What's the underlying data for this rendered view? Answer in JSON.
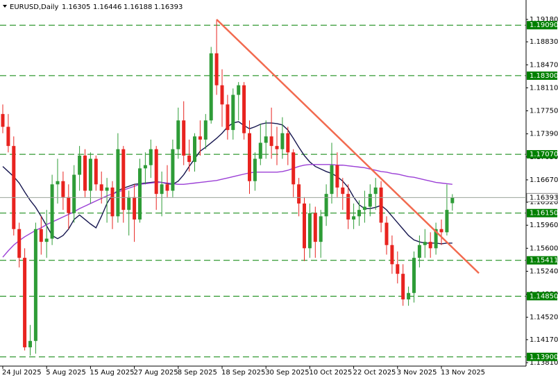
{
  "chart_data": {
    "type": "candlestick",
    "title": "EURUSD,Daily",
    "categories": [
      "2025-07-24",
      "2025-07-25",
      "2025-07-28",
      "2025-07-29",
      "2025-07-30",
      "2025-07-31",
      "2025-08-01",
      "2025-08-04",
      "2025-08-05",
      "2025-08-06",
      "2025-08-07",
      "2025-08-08",
      "2025-08-11",
      "2025-08-12",
      "2025-08-13",
      "2025-08-14",
      "2025-08-15",
      "2025-08-18",
      "2025-08-19",
      "2025-08-20",
      "2025-08-21",
      "2025-08-22",
      "2025-08-25",
      "2025-08-26",
      "2025-08-27",
      "2025-08-28",
      "2025-08-29",
      "2025-09-01",
      "2025-09-02",
      "2025-09-03",
      "2025-09-04",
      "2025-09-05",
      "2025-09-08",
      "2025-09-09",
      "2025-09-10",
      "2025-09-11",
      "2025-09-12",
      "2025-09-15",
      "2025-09-16",
      "2025-09-17",
      "2025-09-18",
      "2025-09-19",
      "2025-09-22",
      "2025-09-23",
      "2025-09-24",
      "2025-09-25",
      "2025-09-26",
      "2025-09-29",
      "2025-09-30",
      "2025-10-01",
      "2025-10-02",
      "2025-10-03",
      "2025-10-06",
      "2025-10-07",
      "2025-10-08",
      "2025-10-09",
      "2025-10-10",
      "2025-10-13",
      "2025-10-14",
      "2025-10-15",
      "2025-10-16",
      "2025-10-17",
      "2025-10-20",
      "2025-10-21",
      "2025-10-22",
      "2025-10-23",
      "2025-10-24",
      "2025-10-27",
      "2025-10-28",
      "2025-10-29",
      "2025-10-30",
      "2025-10-31",
      "2025-11-03",
      "2025-11-04",
      "2025-11-05",
      "2025-11-06",
      "2025-11-07",
      "2025-11-10",
      "2025-11-11",
      "2025-11-12",
      "2025-11-13",
      "2025-11-14",
      "2025-11-17"
    ],
    "candles": {
      "open": [
        1.177,
        1.175,
        1.172,
        1.159,
        1.1545,
        1.1405,
        1.1415,
        1.159,
        1.157,
        1.1575,
        1.166,
        1.1665,
        1.164,
        1.1615,
        1.1675,
        1.1705,
        1.165,
        1.17,
        1.166,
        1.165,
        1.1655,
        1.161,
        1.1715,
        1.162,
        1.164,
        1.1605,
        1.1685,
        1.169,
        1.1715,
        1.1645,
        1.166,
        1.165,
        1.1715,
        1.176,
        1.1705,
        1.1695,
        1.1735,
        1.173,
        1.176,
        1.1865,
        1.1815,
        1.1785,
        1.1745,
        1.18,
        1.1815,
        1.174,
        1.1665,
        1.17,
        1.1725,
        1.1735,
        1.172,
        1.1715,
        1.174,
        1.171,
        1.166,
        1.163,
        1.156,
        1.1615,
        1.157,
        1.161,
        1.1645,
        1.169,
        1.1655,
        1.1645,
        1.1605,
        1.161,
        1.162,
        1.1625,
        1.1645,
        1.1655,
        1.16,
        1.1565,
        1.1535,
        1.152,
        1.148,
        1.149,
        1.1545,
        1.1565,
        1.157,
        1.156,
        1.159,
        1.1585,
        1.16305
      ],
      "high": [
        1.1785,
        1.177,
        1.1735,
        1.16,
        1.156,
        1.144,
        1.16,
        1.161,
        1.162,
        1.1675,
        1.17,
        1.168,
        1.166,
        1.169,
        1.172,
        1.1715,
        1.171,
        1.1705,
        1.168,
        1.167,
        1.1665,
        1.174,
        1.172,
        1.165,
        1.166,
        1.17,
        1.171,
        1.173,
        1.172,
        1.168,
        1.169,
        1.173,
        1.178,
        1.179,
        1.173,
        1.174,
        1.176,
        1.177,
        1.1875,
        1.1918,
        1.184,
        1.18,
        1.181,
        1.182,
        1.182,
        1.176,
        1.171,
        1.1755,
        1.176,
        1.178,
        1.175,
        1.1765,
        1.175,
        1.1715,
        1.167,
        1.164,
        1.163,
        1.1625,
        1.162,
        1.166,
        1.1725,
        1.171,
        1.167,
        1.166,
        1.163,
        1.1635,
        1.165,
        1.166,
        1.167,
        1.1665,
        1.161,
        1.158,
        1.1555,
        1.1535,
        1.15,
        1.1555,
        1.158,
        1.159,
        1.1585,
        1.16,
        1.1605,
        1.166,
        1.16446
      ],
      "low": [
        1.174,
        1.171,
        1.158,
        1.153,
        1.14,
        1.1392,
        1.1395,
        1.155,
        1.1545,
        1.1565,
        1.163,
        1.162,
        1.159,
        1.16,
        1.165,
        1.164,
        1.163,
        1.165,
        1.163,
        1.16,
        1.159,
        1.16,
        1.16,
        1.158,
        1.157,
        1.16,
        1.166,
        1.167,
        1.162,
        1.161,
        1.164,
        1.164,
        1.17,
        1.169,
        1.168,
        1.168,
        1.1705,
        1.1715,
        1.1755,
        1.18,
        1.175,
        1.173,
        1.173,
        1.176,
        1.173,
        1.1645,
        1.165,
        1.169,
        1.17,
        1.17,
        1.169,
        1.17,
        1.169,
        1.164,
        1.161,
        1.154,
        1.1545,
        1.1545,
        1.1545,
        1.1595,
        1.163,
        1.164,
        1.162,
        1.159,
        1.159,
        1.1595,
        1.16,
        1.161,
        1.162,
        1.1585,
        1.155,
        1.152,
        1.1505,
        1.147,
        1.147,
        1.1475,
        1.153,
        1.1545,
        1.1545,
        1.155,
        1.1565,
        1.158,
        1.16188
      ],
      "close": [
        1.175,
        1.172,
        1.159,
        1.1545,
        1.1405,
        1.1415,
        1.159,
        1.157,
        1.1575,
        1.166,
        1.1665,
        1.164,
        1.1615,
        1.1675,
        1.1705,
        1.165,
        1.17,
        1.166,
        1.165,
        1.1655,
        1.161,
        1.1715,
        1.162,
        1.164,
        1.1605,
        1.1685,
        1.169,
        1.1715,
        1.1645,
        1.166,
        1.165,
        1.1715,
        1.176,
        1.1705,
        1.1695,
        1.1735,
        1.173,
        1.176,
        1.1865,
        1.1815,
        1.1785,
        1.1745,
        1.18,
        1.1815,
        1.174,
        1.1665,
        1.17,
        1.1725,
        1.1735,
        1.172,
        1.1715,
        1.174,
        1.171,
        1.166,
        1.163,
        1.156,
        1.1615,
        1.157,
        1.161,
        1.1645,
        1.169,
        1.1655,
        1.1645,
        1.1605,
        1.161,
        1.162,
        1.1625,
        1.1645,
        1.1655,
        1.16,
        1.1565,
        1.1535,
        1.152,
        1.148,
        1.149,
        1.1545,
        1.1565,
        1.157,
        1.156,
        1.159,
        1.1585,
        1.162,
        1.16393
      ],
      "up_color": "#2e9c37",
      "down_color": "#e8231f"
    },
    "series": [
      {
        "color": "#16164f",
        "values": [
          1.1688,
          1.168,
          1.1672,
          1.1662,
          1.1648,
          1.1635,
          1.1624,
          1.161,
          1.1595,
          1.158,
          1.1575,
          1.158,
          1.159,
          1.1605,
          1.1612,
          1.1605,
          1.1598,
          1.1592,
          1.161,
          1.163,
          1.1644,
          1.165,
          1.1654,
          1.1657,
          1.166,
          1.1661,
          1.1662,
          1.1663,
          1.1664,
          1.1663,
          1.1661,
          1.166,
          1.1665,
          1.1675,
          1.1688,
          1.17,
          1.1712,
          1.1718,
          1.1725,
          1.1732,
          1.174,
          1.175,
          1.1756,
          1.1758,
          1.1752,
          1.1747,
          1.175,
          1.1754,
          1.1756,
          1.1756,
          1.1755,
          1.1753,
          1.1745,
          1.1732,
          1.1718,
          1.1705,
          1.1695,
          1.1688,
          1.1684,
          1.168,
          1.1677,
          1.1672,
          1.1665,
          1.1655,
          1.164,
          1.1628,
          1.1622,
          1.1622,
          1.1624,
          1.1627,
          1.162,
          1.161,
          1.16,
          1.159,
          1.158,
          1.1573,
          1.157,
          1.1568,
          1.1568,
          1.1568,
          1.1567,
          1.1568,
          1.1568
        ]
      },
      {
        "color": "#9b3fd6",
        "values": [
          1.1546,
          1.1556,
          1.1565,
          1.1572,
          1.1578,
          1.1583,
          1.1588,
          1.1592,
          1.1597,
          1.1601,
          1.1605,
          1.1609,
          1.1613,
          1.1617,
          1.1622,
          1.1626,
          1.163,
          1.1634,
          1.1638,
          1.1642,
          1.1645,
          1.1648,
          1.1651,
          1.1654,
          1.1657,
          1.166,
          1.1661,
          1.1662,
          1.1663,
          1.1663,
          1.1662,
          1.1661,
          1.166,
          1.166,
          1.1661,
          1.1662,
          1.1663,
          1.1664,
          1.1665,
          1.1666,
          1.1668,
          1.167,
          1.1672,
          1.1674,
          1.1676,
          1.1678,
          1.1679,
          1.1679,
          1.1679,
          1.1679,
          1.1679,
          1.168,
          1.1682,
          1.1685,
          1.1688,
          1.169,
          1.1691,
          1.1691,
          1.1691,
          1.1691,
          1.1691,
          1.169,
          1.169,
          1.1689,
          1.1688,
          1.1687,
          1.1686,
          1.1684,
          1.1682,
          1.168,
          1.1679,
          1.1677,
          1.1676,
          1.1674,
          1.1672,
          1.1671,
          1.1669,
          1.1667,
          1.1665,
          1.1663,
          1.1662,
          1.1661,
          1.166
        ]
      }
    ],
    "trendline": {
      "start_date": "2025-09-17",
      "start_price": 1.1918,
      "end_price": 1.1521,
      "color": "#f26a4f"
    },
    "levels": [
      {
        "value": 1.1909,
        "label": "1.19090"
      },
      {
        "value": 1.183,
        "label": "1.18300"
      },
      {
        "value": 1.1707,
        "label": "1.17070"
      },
      {
        "value": 1.1615,
        "label": "1.16150"
      },
      {
        "value": 1.15411,
        "label": "1.15411"
      },
      {
        "value": 1.1485,
        "label": "1.14850"
      },
      {
        "value": 1.139,
        "label": "1.13900"
      }
    ],
    "level_color": "#008000",
    "ylim": [
      1.13756,
      1.19484
    ],
    "yticks": [
      {
        "value": 1.1918,
        "label": "1.19180"
      },
      {
        "value": 1.1883,
        "label": "1.18830"
      },
      {
        "value": 1.1847,
        "label": "1.18470"
      },
      {
        "value": 1.1811,
        "label": "1.18110"
      },
      {
        "value": 1.1775,
        "label": "1.17750"
      },
      {
        "value": 1.1739,
        "label": "1.17390"
      },
      {
        "value": 1.1703,
        "label": "1.17030"
      },
      {
        "value": 1.1667,
        "label": "1.16670"
      },
      {
        "value": 1.1632,
        "label": "1.16320"
      },
      {
        "value": 1.1596,
        "label": "1.15960"
      },
      {
        "value": 1.156,
        "label": "1.15600"
      },
      {
        "value": 1.1524,
        "label": "1.15240"
      },
      {
        "value": 1.1488,
        "label": "1.14880"
      },
      {
        "value": 1.1452,
        "label": "1.14520"
      },
      {
        "value": 1.1417,
        "label": "1.14170"
      },
      {
        "value": 1.1381,
        "label": "1.13810"
      }
    ],
    "xticks": [
      {
        "value": "2025-07-24",
        "label": "24 Jul 2025"
      },
      {
        "value": "2025-08-05",
        "label": "5 Aug 2025"
      },
      {
        "value": "2025-08-15",
        "label": "15 Aug 2025"
      },
      {
        "value": "2025-08-27",
        "label": "27 Aug 2025"
      },
      {
        "value": "2025-09-08",
        "label": "8 Sep 2025"
      },
      {
        "value": "2025-09-18",
        "label": "18 Sep 2025"
      },
      {
        "value": "2025-09-30",
        "label": "30 Sep 2025"
      },
      {
        "value": "2025-10-10",
        "label": "10 Oct 2025"
      },
      {
        "value": "2025-10-22",
        "label": "22 Oct 2025"
      },
      {
        "value": "2025-11-03",
        "label": "3 Nov 2025"
      },
      {
        "value": "2025-11-13",
        "label": "13 Nov 2025"
      }
    ]
  }
}
